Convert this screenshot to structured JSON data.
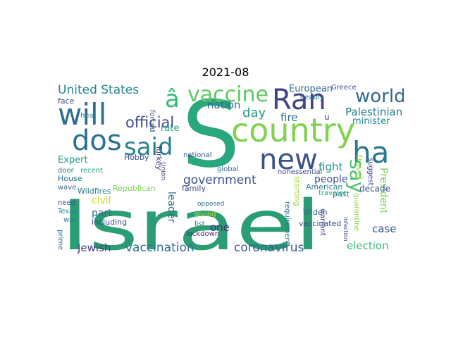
{
  "figure": {
    "title": "2021-08",
    "words": [
      {
        "text": "Israel",
        "color": "#2a9d74"
      },
      {
        "text": "S",
        "color": "#29a77e"
      },
      {
        "text": "country",
        "color": "#7fd34e"
      },
      {
        "text": "new",
        "color": "#3b528b"
      },
      {
        "text": "will",
        "color": "#2f6f8e"
      },
      {
        "text": "Ran",
        "color": "#414487"
      },
      {
        "text": "dos",
        "color": "#2c728e"
      },
      {
        "text": "said",
        "color": "#26828e"
      },
      {
        "text": "ha",
        "color": "#2a788e"
      },
      {
        "text": "vaccine",
        "color": "#5ec962"
      },
      {
        "text": "â",
        "color": "#35b779"
      },
      {
        "text": "world",
        "color": "#31688e"
      },
      {
        "text": "say",
        "color": "#48c16e"
      },
      {
        "text": "United States",
        "color": "#25858e"
      },
      {
        "text": "official",
        "color": "#3e4a89"
      },
      {
        "text": "vaccination",
        "color": "#2d708e"
      },
      {
        "text": "coronavirus",
        "color": "#355f8d"
      },
      {
        "text": "government",
        "color": "#3b528b"
      },
      {
        "text": "Palestinian",
        "color": "#287c8e"
      },
      {
        "text": "election",
        "color": "#3aba76"
      },
      {
        "text": "Jewish",
        "color": "#443983"
      },
      {
        "text": "day",
        "color": "#1f9e89"
      },
      {
        "text": "nation",
        "color": "#31688e"
      },
      {
        "text": "fire",
        "color": "#2e6e8e"
      },
      {
        "text": "case",
        "color": "#39568c"
      },
      {
        "text": "fight",
        "color": "#21918c"
      },
      {
        "text": "people",
        "color": "#3b528b"
      },
      {
        "text": "President",
        "color": "#7ad151"
      },
      {
        "text": "leader",
        "color": "#2c728e"
      },
      {
        "text": "one",
        "color": "#472c7a"
      },
      {
        "text": "part",
        "color": "#2f6b8e"
      },
      {
        "text": "Expert",
        "color": "#1f9e89"
      },
      {
        "text": "rate",
        "color": "#22a884"
      },
      {
        "text": "European",
        "color": "#31688e"
      },
      {
        "text": "minister",
        "color": "#25848e"
      },
      {
        "text": "civil",
        "color": "#c2df23"
      },
      {
        "text": "travel",
        "color": "#a5db36"
      },
      {
        "text": "decade",
        "color": "#3b528b"
      },
      {
        "text": "Wildfires",
        "color": "#2a788e"
      },
      {
        "text": "Republican",
        "color": "#7ad151"
      },
      {
        "text": "House",
        "color": "#2c728e"
      },
      {
        "text": "Turkey",
        "color": "#443a83"
      },
      {
        "text": "family",
        "color": "#3e4a89"
      },
      {
        "text": "Hobby",
        "color": "#3b528b"
      },
      {
        "text": "including",
        "color": "#3e4989"
      },
      {
        "text": "past",
        "color": "#2f6c8e"
      },
      {
        "text": "Widen",
        "color": "#31688e"
      },
      {
        "text": "vaccinated",
        "color": "#3b528b"
      },
      {
        "text": "American",
        "color": "#287d8e"
      },
      {
        "text": "Greece",
        "color": "#3e4c8a"
      },
      {
        "text": "global",
        "color": "#2e6d8e"
      },
      {
        "text": "starting",
        "color": "#a8db34"
      },
      {
        "text": "requirement",
        "color": "#2c738e"
      },
      {
        "text": "nonessential",
        "color": "#3b528b"
      },
      {
        "text": "traveler",
        "color": "#25ab82"
      },
      {
        "text": "giving",
        "color": "#b5de2b"
      },
      {
        "text": "list",
        "color": "#2d718e"
      },
      {
        "text": "lockdown",
        "color": "#472a7a"
      },
      {
        "text": "warrant",
        "color": "#46327e"
      },
      {
        "text": "quarantine",
        "color": "#8bd646"
      },
      {
        "text": "suggest",
        "color": "#3e4989"
      },
      {
        "text": "recent",
        "color": "#1fa088"
      },
      {
        "text": "door",
        "color": "#2b758e"
      },
      {
        "text": "wave",
        "color": "#31688e"
      },
      {
        "text": "need",
        "color": "#3b528b"
      },
      {
        "text": "Texas",
        "color": "#25848e"
      },
      {
        "text": "war",
        "color": "#2a788e"
      },
      {
        "text": "heat",
        "color": "#24878e"
      },
      {
        "text": "face",
        "color": "#3e4a89"
      },
      {
        "text": "opposed",
        "color": "#2e6e8e"
      },
      {
        "text": "national",
        "color": "#3b528b"
      },
      {
        "text": "Union",
        "color": "#482979"
      },
      {
        "text": "prime",
        "color": "#2c728e"
      },
      {
        "text": "u",
        "color": "#3b528b"
      },
      {
        "text": "deadly",
        "color": "#2e6d8e"
      },
      {
        "text": "forced",
        "color": "#3b528b"
      },
      {
        "text": "infection",
        "color": "#3e4a89"
      }
    ]
  }
}
